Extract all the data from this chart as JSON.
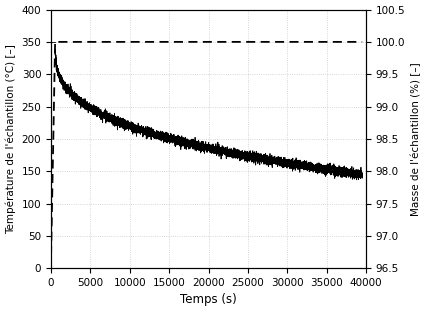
{
  "title": "",
  "xlabel": "Temps (s)",
  "ylabel_left": "Température de l'échantillon (°C) [–]",
  "ylabel_right": "Masse de l'échantillon (%) [–]",
  "xlim": [
    0,
    40000
  ],
  "ylim_left": [
    0,
    400
  ],
  "ylim_right": [
    96.5,
    100.5
  ],
  "xticks": [
    0,
    5000,
    10000,
    15000,
    20000,
    25000,
    30000,
    35000,
    40000
  ],
  "yticks_left": [
    0,
    50,
    100,
    150,
    200,
    250,
    300,
    350,
    400
  ],
  "yticks_right": [
    96.5,
    97.0,
    97.5,
    98.0,
    98.5,
    99.0,
    99.5,
    100.0,
    100.5
  ],
  "temp_color": "#000000",
  "mass_color": "#000000",
  "grid_color": "#c8c8d8",
  "background_color": "#ffffff",
  "temp_start_time": 0,
  "temp_start_val": 20,
  "temp_rise_end_time": 500,
  "temp_plateau_val": 350,
  "mass_start_pct": 100.0,
  "mass_end_pct": 97.95,
  "mass_drop_start": 500,
  "mass_noise_std": 0.035,
  "figsize": [
    4.27,
    3.12
  ],
  "dpi": 100
}
